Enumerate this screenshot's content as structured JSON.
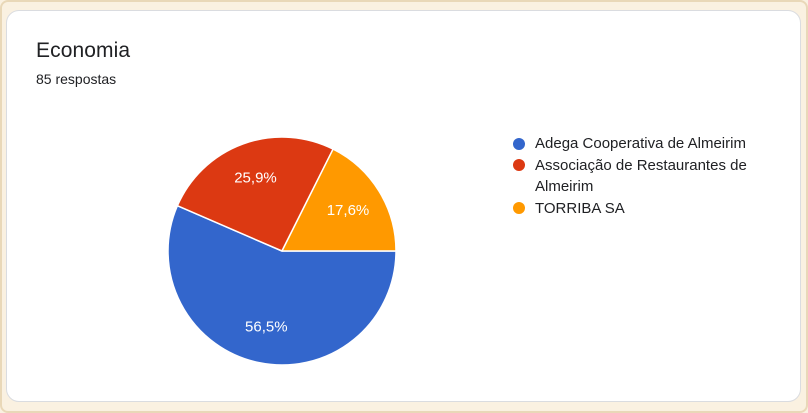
{
  "page": {
    "background_color": "#FAF1E1",
    "frame_border_color": "#E9D8B8"
  },
  "card": {
    "background_color": "#FFFFFF",
    "border_color": "#DADCE0",
    "title": "Economia",
    "subtitle": "85 respostas"
  },
  "chart_data": {
    "type": "pie",
    "title": "Economia",
    "subtitle": "85 respostas",
    "total_responses": 85,
    "start_angle_deg": 0,
    "direction": "clockwise",
    "legend_position": "right",
    "grid": false,
    "slice_label_color": "#FFFFFF",
    "slice_separator_color": "#FFFFFF",
    "series": [
      {
        "name": "Adega Cooperativa de Almeirim",
        "value": 56.5,
        "label": "56,5%",
        "color": "#3366CC"
      },
      {
        "name": "Associação de Restaurantes de Almeirim",
        "value": 25.9,
        "label": "25,9%",
        "color": "#DC3912"
      },
      {
        "name": "TORRIBA SA",
        "value": 17.6,
        "label": "17,6%",
        "color": "#FF9900"
      }
    ]
  }
}
